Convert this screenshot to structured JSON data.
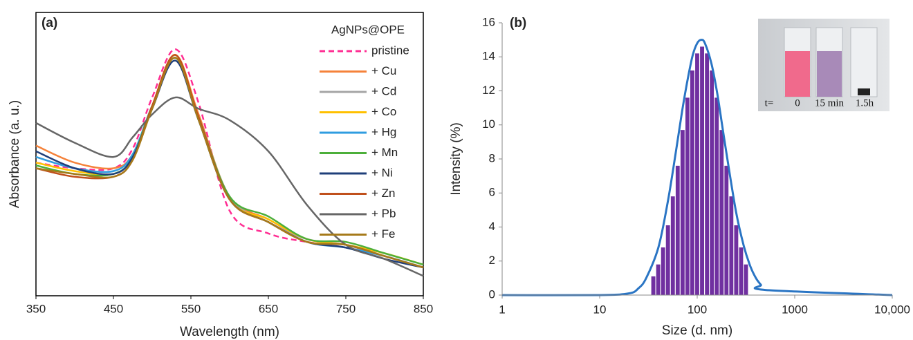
{
  "chart_data": [
    {
      "type": "line",
      "panel_label": "(a)",
      "x_label": "Wavelength (nm)",
      "y_label": "Absorbance (a. u.)",
      "legend_title": "AgNPs@OPE",
      "legend": "upper right",
      "x": [
        350,
        400,
        450,
        475,
        500,
        530,
        560,
        600,
        650,
        700,
        750,
        800,
        850
      ],
      "xlim": [
        350,
        850
      ],
      "xticks": [
        350,
        450,
        550,
        650,
        750,
        850
      ],
      "ylim": [
        0,
        1
      ],
      "grid": false,
      "series": [
        {
          "name": "pristine",
          "color": "#ff2e93",
          "dashed": true,
          "values": [
            0.47,
            0.45,
            0.45,
            0.52,
            0.7,
            0.87,
            0.68,
            0.3,
            0.22,
            0.19,
            0.17,
            0.14,
            0.1
          ]
        },
        {
          "name": "+ Cu",
          "color": "#f5823a",
          "values": [
            0.53,
            0.47,
            0.45,
            0.5,
            0.67,
            0.85,
            0.64,
            0.35,
            0.27,
            0.2,
            0.18,
            0.14,
            0.1
          ]
        },
        {
          "name": "+ Cd",
          "color": "#a5a5a5",
          "values": [
            0.49,
            0.45,
            0.44,
            0.5,
            0.67,
            0.84,
            0.63,
            0.35,
            0.26,
            0.2,
            0.18,
            0.14,
            0.1
          ]
        },
        {
          "name": "+ Co",
          "color": "#ffc000",
          "values": [
            0.47,
            0.44,
            0.43,
            0.49,
            0.67,
            0.85,
            0.63,
            0.34,
            0.27,
            0.2,
            0.18,
            0.15,
            0.11
          ]
        },
        {
          "name": "+ Hg",
          "color": "#2f9de0",
          "values": [
            0.49,
            0.45,
            0.44,
            0.5,
            0.67,
            0.84,
            0.62,
            0.34,
            0.26,
            0.19,
            0.17,
            0.14,
            0.1
          ]
        },
        {
          "name": "+ Mn",
          "color": "#4caf3a",
          "values": [
            0.46,
            0.43,
            0.43,
            0.49,
            0.67,
            0.84,
            0.63,
            0.35,
            0.28,
            0.2,
            0.19,
            0.15,
            0.11
          ]
        },
        {
          "name": "+ Ni",
          "color": "#1f3f7a",
          "values": [
            0.51,
            0.45,
            0.43,
            0.49,
            0.66,
            0.83,
            0.62,
            0.34,
            0.26,
            0.19,
            0.17,
            0.13,
            0.1
          ]
        },
        {
          "name": "+ Zn",
          "color": "#c0501c",
          "values": [
            0.45,
            0.42,
            0.42,
            0.48,
            0.67,
            0.85,
            0.63,
            0.34,
            0.26,
            0.19,
            0.18,
            0.14,
            0.1
          ]
        },
        {
          "name": "+ Pb",
          "color": "#666666",
          "values": [
            0.61,
            0.54,
            0.49,
            0.56,
            0.64,
            0.7,
            0.66,
            0.62,
            0.51,
            0.32,
            0.18,
            0.13,
            0.07
          ]
        },
        {
          "name": "+ Fe",
          "color": "#a67a1a",
          "values": [
            0.45,
            0.43,
            0.42,
            0.48,
            0.66,
            0.84,
            0.62,
            0.34,
            0.26,
            0.19,
            0.18,
            0.14,
            0.1
          ]
        }
      ]
    },
    {
      "type": "histogram",
      "panel_label": "(b)",
      "x_label": "Size (d. nm)",
      "y_label": "Intensity (%)",
      "log_x": true,
      "xlim": [
        1,
        10000
      ],
      "xticks": [
        1,
        10,
        100,
        1000,
        {
          "value": 10000,
          "label": "10,000"
        }
      ],
      "ylim": [
        0,
        16
      ],
      "yticks": [
        0,
        2,
        4,
        6,
        8,
        10,
        12,
        14,
        16
      ],
      "grid": false,
      "color": "#7030a0",
      "bins": [
        33.5,
        37.6,
        42.2,
        47.3,
        53.1,
        59.6,
        66.8,
        75.0,
        84.1,
        94.4,
        105.9,
        118.9,
        133.4,
        149.6,
        167.9,
        188.4,
        211.3,
        237.1,
        266.1,
        298.5,
        335.0
      ],
      "values": [
        1.1,
        1.8,
        2.8,
        4.1,
        5.8,
        7.6,
        9.7,
        11.6,
        13.2,
        14.2,
        14.6,
        14.2,
        13.2,
        11.6,
        9.7,
        7.6,
        5.8,
        4.1,
        2.8,
        1.8
      ],
      "line": {
        "color": "#2a75c4",
        "x": [
          1,
          10,
          20,
          25,
          30,
          40,
          50,
          60,
          70,
          80,
          90,
          100,
          110,
          120,
          140,
          160,
          180,
          200,
          250,
          300,
          350,
          400,
          450,
          500,
          10000
        ],
        "values": [
          0,
          0,
          0.1,
          0.4,
          1.0,
          2.8,
          5.5,
          8.3,
          10.8,
          12.7,
          14.1,
          14.8,
          15.0,
          14.8,
          13.6,
          11.9,
          10.0,
          8.3,
          4.9,
          2.9,
          1.7,
          1.0,
          0.6,
          0.3,
          0
        ]
      },
      "inset": {
        "labels": [
          "t=",
          "0",
          "15 min",
          "1.5h"
        ]
      }
    }
  ]
}
